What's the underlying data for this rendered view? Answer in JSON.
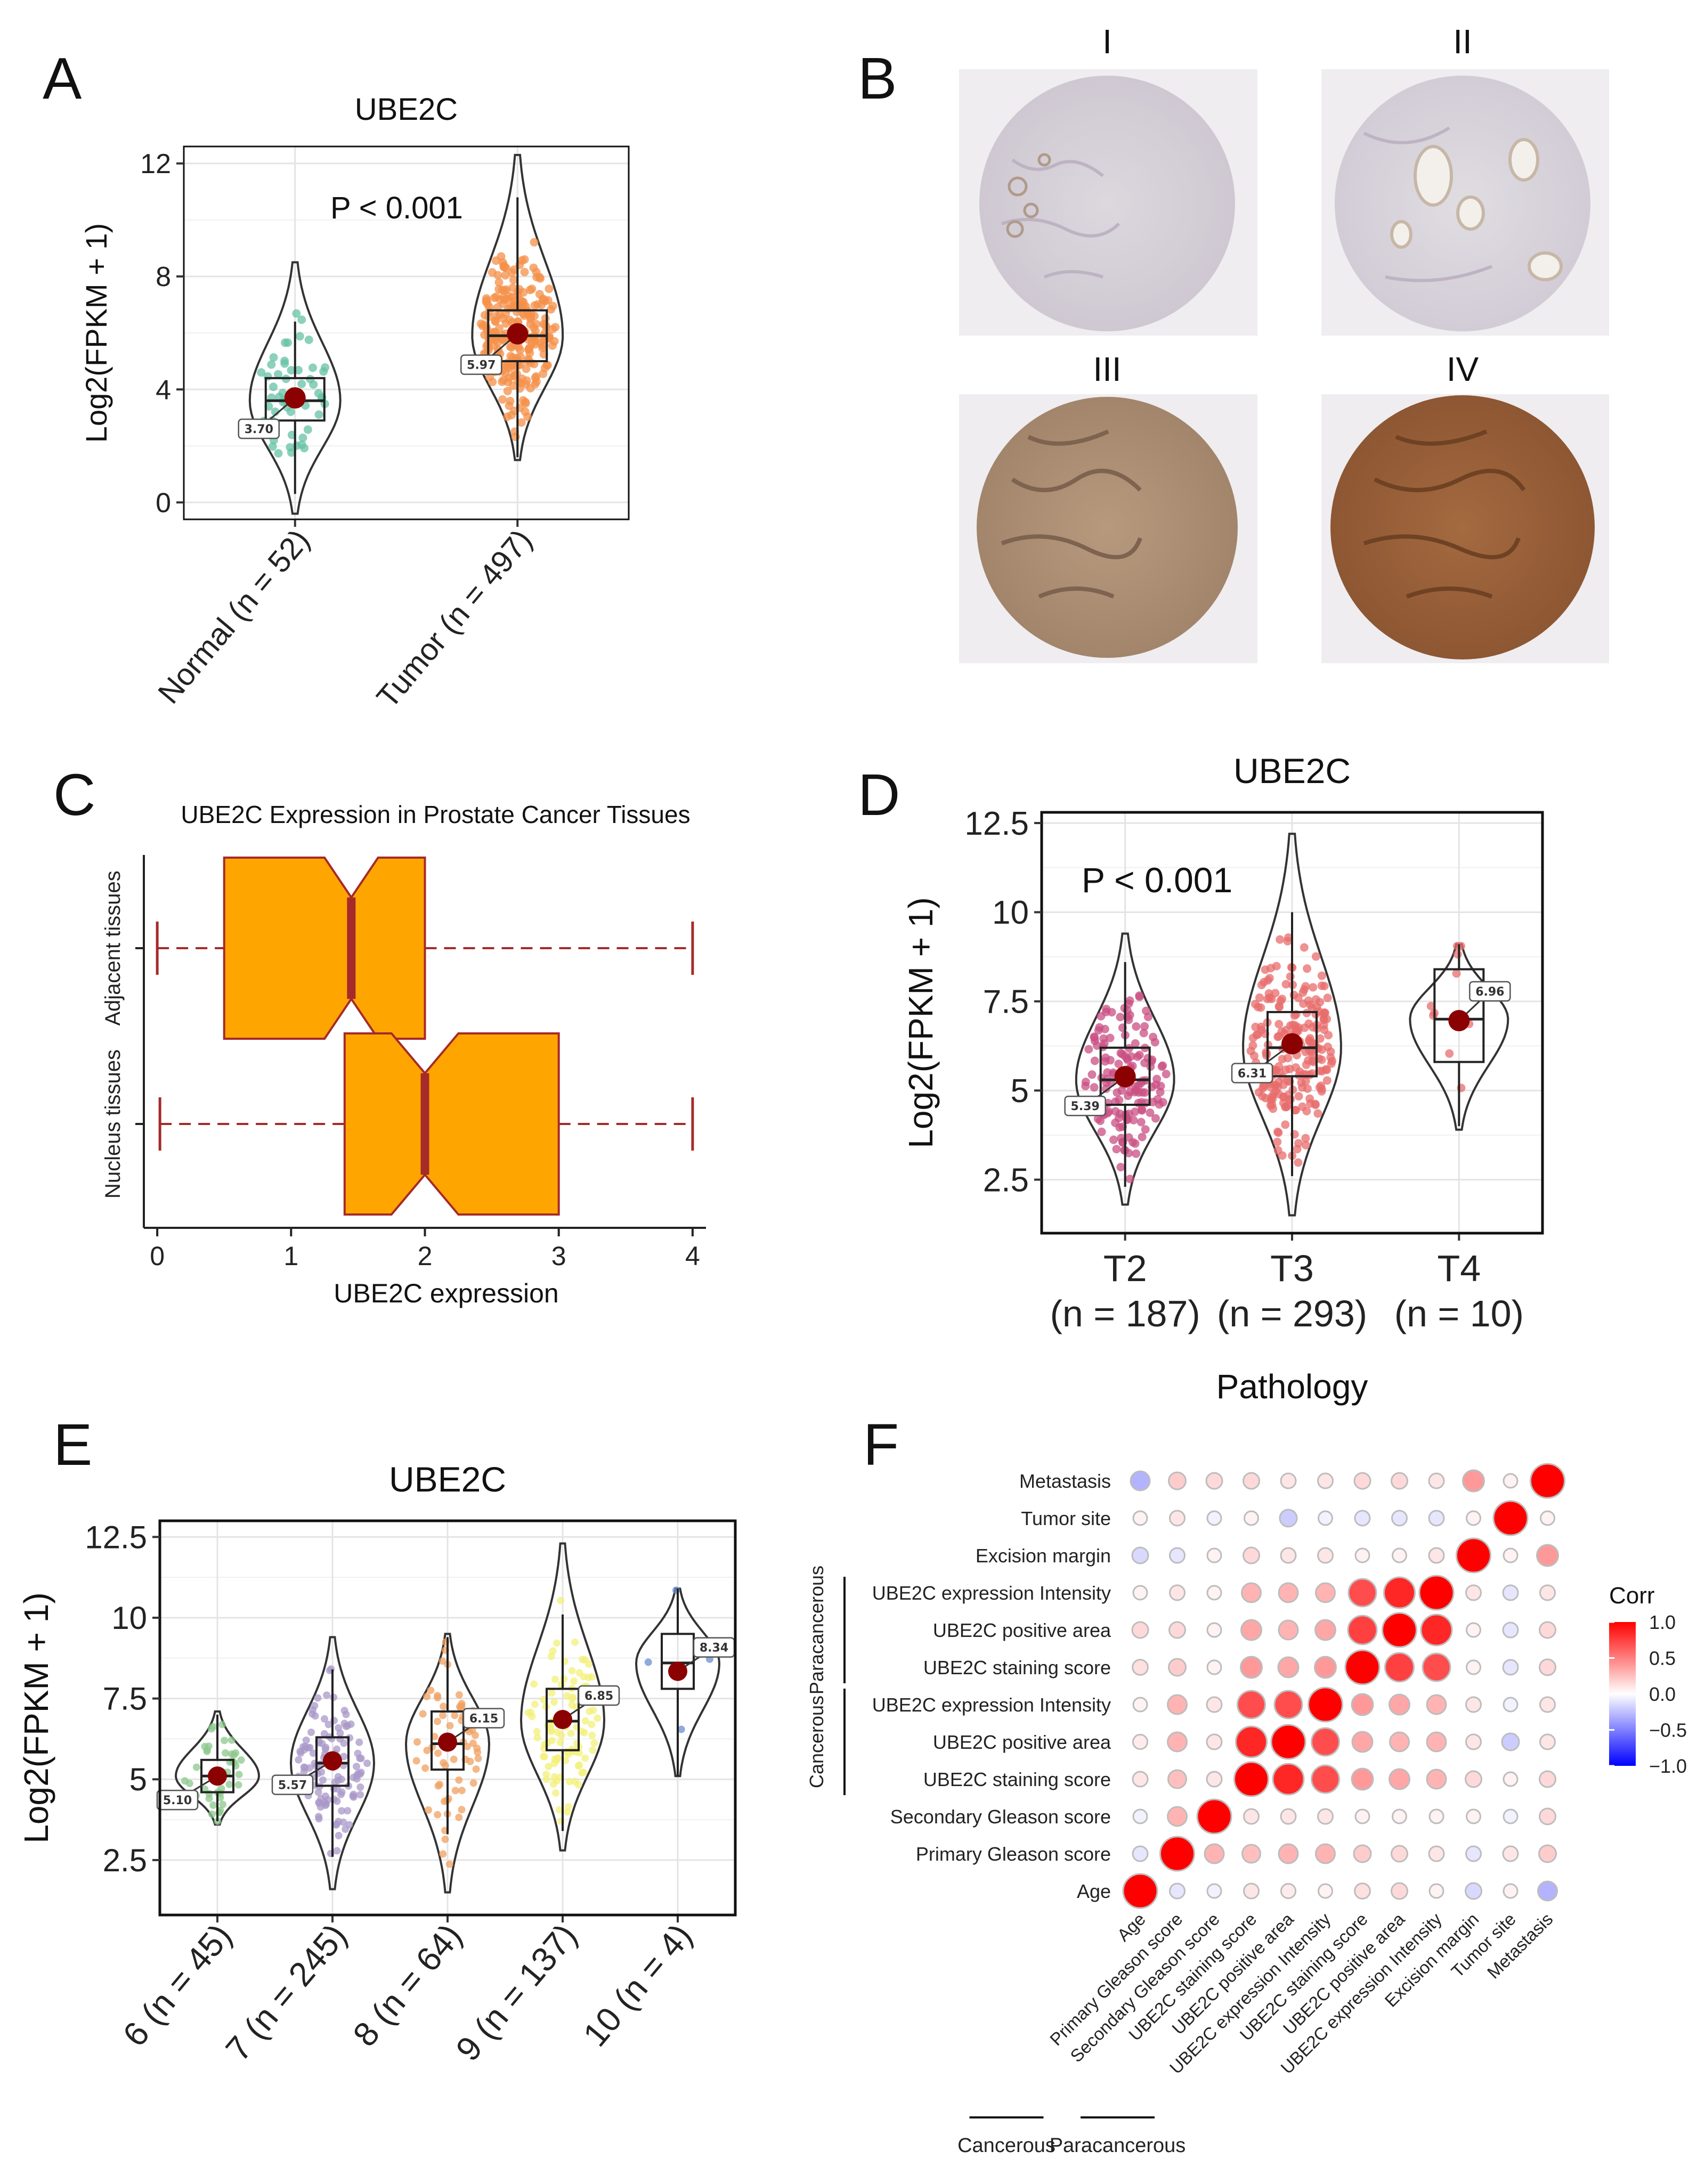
{
  "panel_labels": [
    "A",
    "B",
    "C",
    "D",
    "E",
    "F"
  ],
  "colors": {
    "mean_dot": "#8b0000",
    "normal_green": "#66c2a5",
    "tumor_orange": "#f4904a",
    "stage_pink": "#c94f83",
    "stage_red": "#e86c6c",
    "box_fill": "#ffa500",
    "box_edge": "#a52a2a",
    "pos": "#ff0000",
    "neg": "#0000ff"
  },
  "chart_data": [
    {
      "id": "A",
      "type": "violin-box",
      "title": "UBE2C",
      "ylabel": "Log2(FPKM + 1)",
      "ylim": [
        -0.6,
        12.6
      ],
      "yticks": [
        0,
        4,
        8,
        12
      ],
      "annotation": "P < 0.001",
      "groups": [
        {
          "label": "Normal (n = 52)",
          "mean": 3.7,
          "mean_label": "3.70",
          "median": 3.6,
          "q1": 2.9,
          "q3": 4.4,
          "min": -0.4,
          "max": 8.5,
          "whisk_lo": 0.3,
          "whisk_hi": 6.4,
          "color": "#66c2a5"
        },
        {
          "label": "Tumor (n = 497)",
          "mean": 5.97,
          "mean_label": "5.97",
          "median": 5.9,
          "q1": 5.0,
          "q3": 6.8,
          "min": 1.5,
          "max": 12.3,
          "whisk_lo": 1.6,
          "whisk_hi": 10.8,
          "color": "#f4904a"
        }
      ]
    },
    {
      "id": "B",
      "type": "image-grid",
      "labels": [
        "I",
        "II",
        "III",
        "IV"
      ]
    },
    {
      "id": "C",
      "type": "boxplot",
      "orientation": "horizontal",
      "title": "UBE2C Expression in Prostate Cancer Tissues",
      "xlabel": "UBE2C expression",
      "xlim": [
        -0.1,
        4.1
      ],
      "xticks": [
        0,
        1,
        2,
        3,
        4
      ],
      "series": [
        {
          "name": "Adjacent tissues",
          "min": 0.0,
          "q1": 0.5,
          "median": 1.45,
          "q3": 2.0,
          "max": 4.0,
          "notch_lo": 1.25,
          "notch_hi": 1.65
        },
        {
          "name": "Nucleus tissues",
          "min": 0.02,
          "q1": 1.4,
          "median": 2.0,
          "q3": 3.0,
          "max": 4.0,
          "notch_lo": 1.75,
          "notch_hi": 2.25
        }
      ]
    },
    {
      "id": "D",
      "type": "violin-box",
      "title": "UBE2C",
      "ylabel": "Log2(FPKM + 1)",
      "xlabel": "Pathology",
      "ylim": [
        1.0,
        12.8
      ],
      "yticks": [
        2.5,
        5,
        7.5,
        10,
        12.5
      ],
      "ytick_labels": [
        "2.5",
        "5",
        "7.5",
        "10",
        "12.5"
      ],
      "annotation": "P < 0.001",
      "groups": [
        {
          "label": "T2",
          "sublabel": "(n = 187)",
          "mean": 5.39,
          "mean_label": "5.39",
          "median": 5.3,
          "q1": 4.6,
          "q3": 6.2,
          "min": 1.8,
          "max": 9.4,
          "whisk_lo": 2.3,
          "whisk_hi": 8.6,
          "color": "#c94f83"
        },
        {
          "label": "T3",
          "sublabel": "(n = 293)",
          "mean": 6.31,
          "mean_label": "6.31",
          "median": 6.2,
          "q1": 5.4,
          "q3": 7.2,
          "min": 1.5,
          "max": 12.2,
          "whisk_lo": 2.6,
          "whisk_hi": 10.0,
          "color": "#e86c6c"
        },
        {
          "label": "T4",
          "sublabel": "(n = 10)",
          "mean": 6.96,
          "mean_label": "6.96",
          "median": 7.0,
          "q1": 5.8,
          "q3": 8.4,
          "min": 3.9,
          "max": 9.1,
          "whisk_lo": 4.0,
          "whisk_hi": 9.1,
          "color": "#e86c6c"
        }
      ]
    },
    {
      "id": "E",
      "type": "violin-box",
      "title": "UBE2C",
      "ylabel": "Log2(FPKM + 1)",
      "ylim": [
        0.8,
        13.0
      ],
      "yticks": [
        2.5,
        5,
        7.5,
        10,
        12.5
      ],
      "ytick_labels": [
        "2.5",
        "5",
        "7.5",
        "10",
        "12.5"
      ],
      "groups": [
        {
          "label": "6 (n = 45)",
          "mean": 5.1,
          "mean_label": "5.10",
          "median": 5.1,
          "q1": 4.6,
          "q3": 5.6,
          "min": 3.6,
          "max": 7.1,
          "whisk_lo": 3.7,
          "whisk_hi": 7.0,
          "color": "#8cc88c"
        },
        {
          "label": "7 (n = 245)",
          "mean": 5.57,
          "mean_label": "5.57",
          "median": 5.5,
          "q1": 4.8,
          "q3": 6.3,
          "min": 1.6,
          "max": 9.4,
          "whisk_lo": 2.6,
          "whisk_hi": 8.4,
          "color": "#a998c8"
        },
        {
          "label": "8 (n = 64)",
          "mean": 6.15,
          "mean_label": "6.15",
          "median": 6.1,
          "q1": 5.3,
          "q3": 7.1,
          "min": 1.5,
          "max": 9.5,
          "whisk_lo": 3.3,
          "whisk_hi": 9.4,
          "color": "#f0a060"
        },
        {
          "label": "9 (n = 137)",
          "mean": 6.85,
          "mean_label": "6.85",
          "median": 6.8,
          "q1": 5.9,
          "q3": 7.8,
          "min": 2.8,
          "max": 12.3,
          "whisk_lo": 3.4,
          "whisk_hi": 10.1,
          "color": "#f3f07a"
        },
        {
          "label": "10 (n = 4)",
          "mean": 8.34,
          "mean_label": "8.34",
          "median": 8.6,
          "q1": 7.8,
          "q3": 9.5,
          "min": 5.1,
          "max": 10.9,
          "whisk_lo": 5.1,
          "whisk_hi": 10.9,
          "color": "#6a8fd0"
        }
      ]
    },
    {
      "id": "F",
      "type": "correlation-matrix",
      "legend_title": "Corr",
      "legend_ticks": [
        1.0,
        0.5,
        0.0,
        -0.5,
        -1.0
      ],
      "legend_tick_labels": [
        "1.0",
        "0.5",
        "0.0",
        "−0.5",
        "−1.0"
      ],
      "variables": [
        "Age",
        "Primary Gleason score",
        "Secondary Gleason score",
        "UBE2C staining score",
        "UBE2C positive area",
        "UBE2C expression Intensity",
        "UBE2C staining score",
        "UBE2C positive area",
        "UBE2C expression Intensity",
        "Excision margin",
        "Tumor site",
        "Metastasis"
      ],
      "row_groups": [
        {
          "label": "Cancerous",
          "from": 3,
          "to": 5
        },
        {
          "label": "Paracancerous",
          "from": 6,
          "to": 8
        }
      ],
      "col_groups": [
        {
          "label": "Cancerous",
          "from": 1,
          "to": 3
        },
        {
          "label": "Paracancerous",
          "from": 4,
          "to": 6
        }
      ],
      "matrix": [
        [
          1.0,
          -0.1,
          -0.05,
          0.1,
          0.08,
          0.05,
          0.12,
          0.15,
          0.05,
          -0.15,
          0.05,
          -0.3
        ],
        [
          -0.1,
          1.0,
          0.3,
          0.25,
          0.3,
          0.3,
          0.2,
          0.15,
          0.1,
          -0.1,
          0.1,
          0.2
        ],
        [
          -0.05,
          0.3,
          1.0,
          0.1,
          0.1,
          0.1,
          0.05,
          0.05,
          0.05,
          0.05,
          -0.05,
          0.15
        ],
        [
          0.1,
          0.25,
          0.1,
          1.0,
          0.85,
          0.7,
          0.4,
          0.35,
          0.3,
          0.15,
          0.05,
          0.15
        ],
        [
          0.08,
          0.3,
          0.1,
          0.85,
          1.0,
          0.7,
          0.35,
          0.3,
          0.3,
          0.1,
          -0.2,
          0.1
        ],
        [
          0.05,
          0.3,
          0.1,
          0.7,
          0.7,
          1.0,
          0.4,
          0.35,
          0.3,
          0.1,
          -0.05,
          0.1
        ],
        [
          0.12,
          0.2,
          0.05,
          0.4,
          0.35,
          0.4,
          1.0,
          0.75,
          0.7,
          0.05,
          -0.1,
          0.15
        ],
        [
          0.15,
          0.15,
          0.05,
          0.35,
          0.3,
          0.35,
          0.75,
          1.0,
          0.85,
          0.05,
          -0.1,
          0.15
        ],
        [
          0.05,
          0.1,
          0.05,
          0.3,
          0.3,
          0.3,
          0.7,
          0.85,
          1.0,
          0.1,
          -0.1,
          0.1
        ],
        [
          -0.15,
          -0.1,
          0.05,
          0.15,
          0.1,
          0.1,
          0.05,
          0.05,
          0.1,
          1.0,
          0.05,
          0.4
        ],
        [
          0.05,
          0.1,
          -0.05,
          0.05,
          -0.2,
          -0.05,
          -0.1,
          -0.1,
          -0.1,
          0.05,
          1.0,
          0.05
        ],
        [
          -0.3,
          0.2,
          0.15,
          0.15,
          0.1,
          0.1,
          0.15,
          0.15,
          0.1,
          0.4,
          0.05,
          1.0
        ]
      ]
    }
  ]
}
